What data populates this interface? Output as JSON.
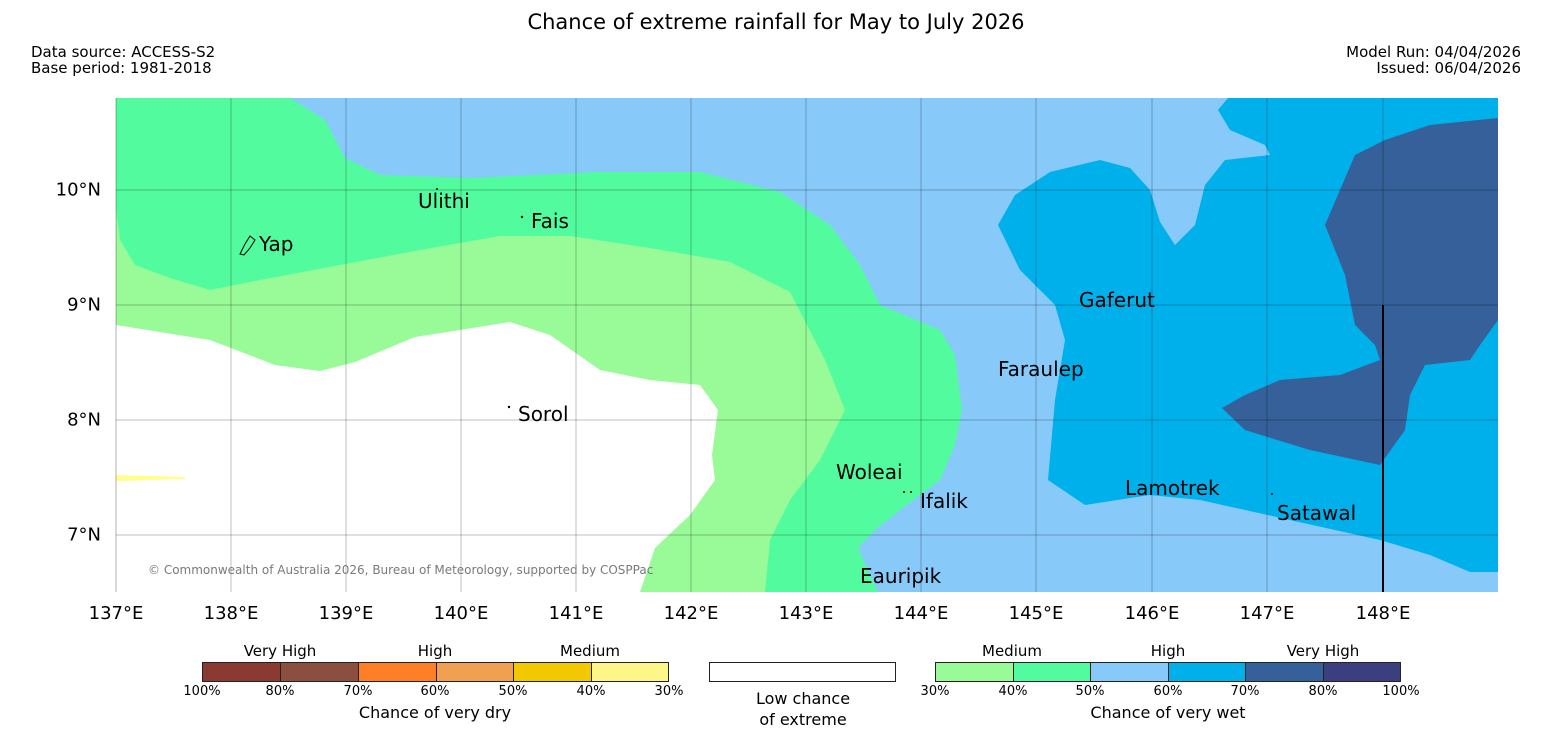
{
  "header": {
    "title": "Chance of extreme rainfall for May to July 2026",
    "data_source": "Data source: ACCESS-S2",
    "base_period": "Base period: 1981-2018",
    "model_run": "Model Run: 04/04/2026",
    "issued": "Issued: 06/04/2026"
  },
  "map": {
    "lon_labels": [
      "137°E",
      "138°E",
      "139°E",
      "140°E",
      "141°E",
      "142°E",
      "143°E",
      "144°E",
      "145°E",
      "146°E",
      "147°E",
      "148°E"
    ],
    "lat_labels": [
      "10°N",
      "9°N",
      "8°N",
      "7°N"
    ],
    "places": [
      "Yap",
      "Ulithi",
      "Fais",
      "Gaferut",
      "Faraulep",
      "Sorol",
      "Woleai",
      "Ifalik",
      "Lamotrek",
      "Satawal",
      "Eauripik"
    ],
    "copyright": "© Commonwealth of Australia 2026, Bureau of Meteorology, supported by COSPPac",
    "colors": {
      "wet_30": "#98fb98",
      "wet_40": "#52fc9e",
      "wet_50": "#87cafa",
      "wet_60": "#00b0ea",
      "wet_70": "#35609a",
      "dry_30": "#ffff8a",
      "low": "#ffffff"
    }
  },
  "legend_dry": {
    "categories": [
      "Very High",
      "High",
      "Medium"
    ],
    "ticks": [
      "100%",
      "80%",
      "70%",
      "60%",
      "50%",
      "40%",
      "30%"
    ],
    "colors": [
      "#8b3a32",
      "#8b4f3f",
      "#ff7f27",
      "#f0a050",
      "#f2c800",
      "#fff68a"
    ],
    "title": "Chance of very dry"
  },
  "legend_low": {
    "line1": "Low chance",
    "line2": "of extreme"
  },
  "legend_wet": {
    "categories": [
      "Medium",
      "High",
      "Very High"
    ],
    "ticks": [
      "30%",
      "40%",
      "50%",
      "60%",
      "70%",
      "80%",
      "100%"
    ],
    "colors": [
      "#98fb98",
      "#52fc9e",
      "#87cafa",
      "#00b0ea",
      "#35609a",
      "#3b3f7f"
    ],
    "title": "Chance of very wet"
  }
}
